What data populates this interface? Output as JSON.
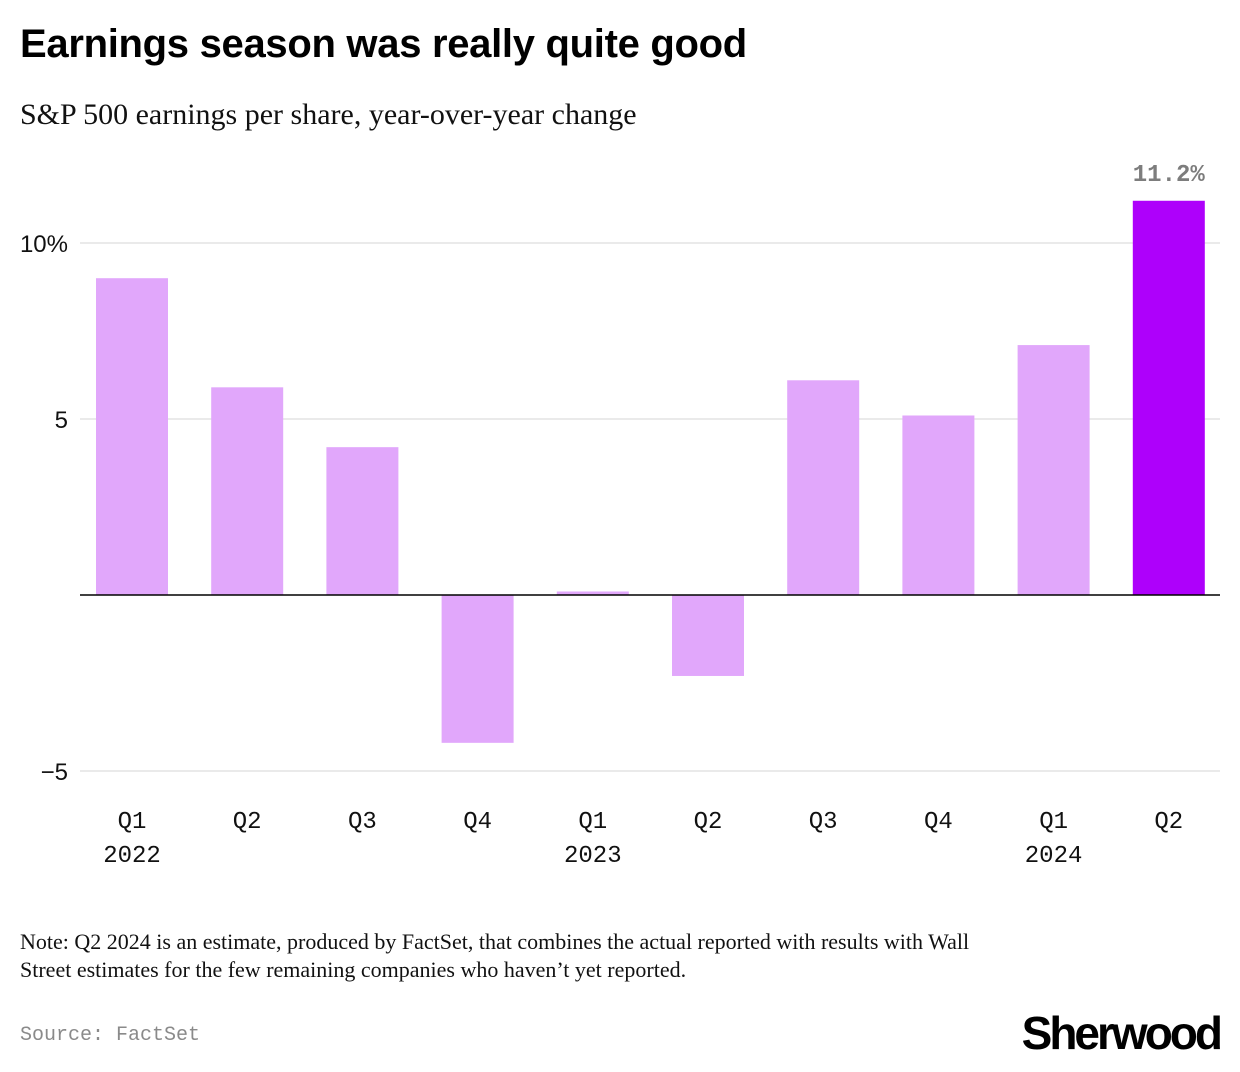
{
  "header": {
    "title": "Earnings season was really quite good",
    "subtitle": "S&P 500 earnings per share, year-over-year change"
  },
  "footer": {
    "note": "Note: Q2 2024 is an estimate, produced by FactSet, that combines the actual reported with results with Wall Street estimates for the few remaining companies who haven’t yet reported.",
    "source": "Source: FactSet",
    "logo_text": "Sherwood"
  },
  "chart_data": {
    "type": "bar",
    "categories": [
      "Q1",
      "Q2",
      "Q3",
      "Q4",
      "Q1",
      "Q2",
      "Q3",
      "Q4",
      "Q1",
      "Q2"
    ],
    "year_labels": [
      "2022",
      "",
      "",
      "",
      "2023",
      "",
      "",
      "",
      "2024",
      ""
    ],
    "values": [
      9.0,
      5.9,
      4.2,
      -4.2,
      0.1,
      -2.3,
      6.1,
      5.1,
      7.1,
      11.2
    ],
    "highlight_index": 9,
    "data_labels": [
      {
        "index": 9,
        "text": "11.2%"
      }
    ],
    "y_ticks": [
      {
        "value": 10,
        "label": "10%"
      },
      {
        "value": 5,
        "label": "5"
      },
      {
        "value": -5,
        "label": "−5"
      }
    ],
    "ylim": [
      -5,
      11.2
    ],
    "grid": true,
    "colors": {
      "bar": "#e1a7fb",
      "highlight": "#ae00fb",
      "grid": "#e4e4e4",
      "zero_line": "#000000"
    }
  }
}
